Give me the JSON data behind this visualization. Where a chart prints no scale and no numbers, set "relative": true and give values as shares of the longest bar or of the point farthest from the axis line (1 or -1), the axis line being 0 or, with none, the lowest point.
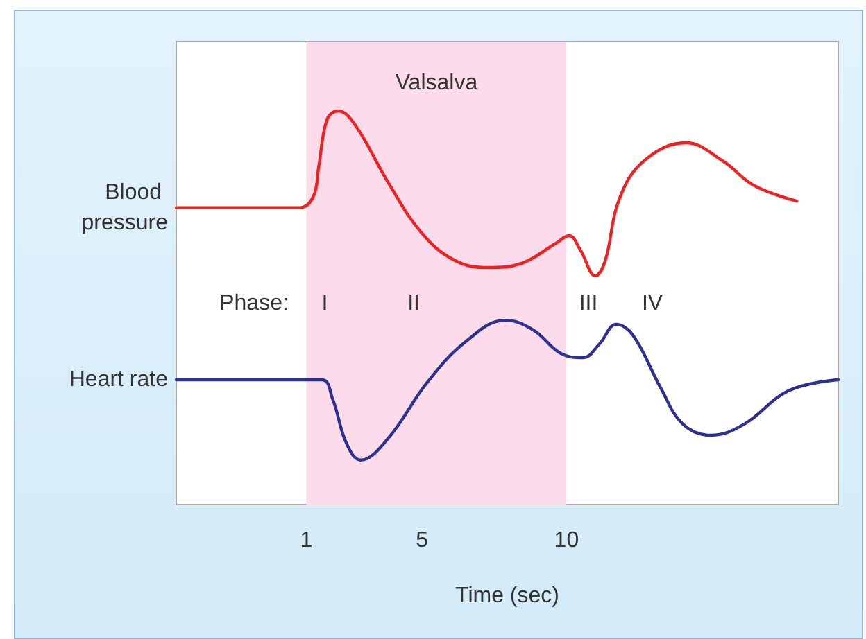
{
  "chart_data": {
    "type": "line",
    "relative": true,
    "xlabel": "Time (sec)",
    "xlim": [
      -3.5,
      19.4
    ],
    "xticks": [
      1,
      5,
      10
    ],
    "tick_labels": "x",
    "grid": false,
    "legend": false,
    "marker": "none",
    "line_style": "solid",
    "series": [
      {
        "name": "Blood pressure",
        "color": "#ee2222",
        "x": [
          -3.5,
          0.76,
          1.24,
          1.43,
          1.72,
          2.1,
          2.68,
          3.84,
          4.99,
          6.14,
          7.3,
          8.45,
          9.6,
          10.09,
          10.47,
          11.0,
          11.34,
          11.82,
          12.68,
          14.13,
          15.4,
          16.5,
          17.97
        ],
        "values": [
          0.754,
          0.754,
          0.782,
          0.859,
          0.979,
          1.0,
          0.965,
          0.817,
          0.69,
          0.62,
          0.602,
          0.613,
          0.662,
          0.683,
          0.648,
          0.581,
          0.62,
          0.775,
          0.873,
          0.919,
          0.873,
          0.81,
          0.771
        ]
      },
      {
        "name": "Heart rate",
        "color": "#2e3192",
        "x": [
          -3.5,
          1.53,
          1.91,
          2.39,
          2.88,
          3.84,
          5.18,
          6.53,
          7.88,
          8.84,
          9.8,
          10.57,
          11.14,
          11.72,
          12.3,
          13.26,
          14.03,
          14.99,
          16.14,
          17.68,
          19.4
        ],
        "values": [
          0.317,
          0.317,
          0.268,
          0.155,
          0.113,
          0.169,
          0.31,
          0.415,
          0.468,
          0.444,
          0.384,
          0.373,
          0.408,
          0.458,
          0.43,
          0.296,
          0.204,
          0.176,
          0.204,
          0.289,
          0.317
        ]
      }
    ],
    "bands": [
      {
        "axis": "x",
        "from": 1,
        "to": 10,
        "label": "Valsalva",
        "color": "#fcdcea"
      }
    ],
    "annotations": [
      "Phase:",
      "I",
      "II",
      "III",
      "IV"
    ]
  }
}
